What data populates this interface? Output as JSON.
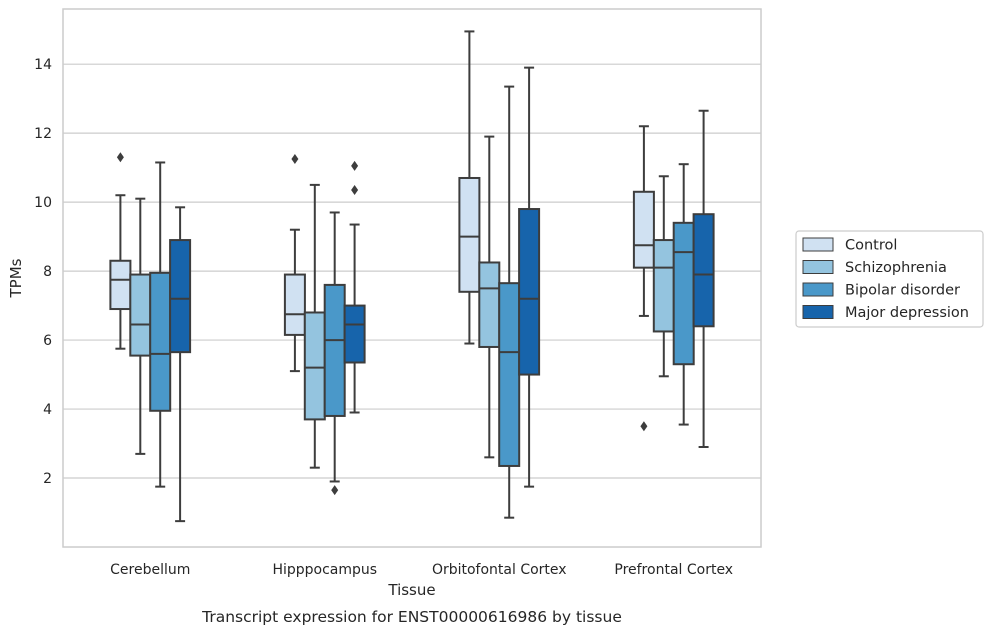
{
  "chart_data": {
    "type": "box",
    "title": "",
    "caption": "Transcript expression for ENST00000616986 by tissue",
    "xlabel": "Tissue",
    "ylabel": "TPMs",
    "ylim": [
      0,
      15.6
    ],
    "yticks": [
      2,
      4,
      6,
      8,
      10,
      12,
      14
    ],
    "grid": true,
    "legend_position": "right",
    "categories": [
      "Cerebellum",
      "Hipppocampus",
      "Orbitofontal Cortex",
      "Prefrontal Cortex"
    ],
    "series": [
      {
        "name": "Control",
        "color": "#d0e1f2",
        "boxes": [
          {
            "whisker_low": 5.75,
            "q1": 6.9,
            "median": 7.75,
            "q3": 8.3,
            "whisker_high": 10.2,
            "outliers": [
              11.3
            ]
          },
          {
            "whisker_low": 5.1,
            "q1": 6.15,
            "median": 6.75,
            "q3": 7.9,
            "whisker_high": 9.2,
            "outliers": [
              11.25
            ]
          },
          {
            "whisker_low": 5.9,
            "q1": 7.4,
            "median": 9.0,
            "q3": 10.7,
            "whisker_high": 14.95,
            "outliers": []
          },
          {
            "whisker_low": 6.7,
            "q1": 8.1,
            "median": 8.75,
            "q3": 10.3,
            "whisker_high": 12.2,
            "outliers": [
              3.5
            ]
          }
        ]
      },
      {
        "name": "Schizophrenia",
        "color": "#94c4df",
        "boxes": [
          {
            "whisker_low": 2.7,
            "q1": 5.55,
            "median": 6.45,
            "q3": 7.9,
            "whisker_high": 10.1,
            "outliers": []
          },
          {
            "whisker_low": 2.3,
            "q1": 3.7,
            "median": 5.2,
            "q3": 6.8,
            "whisker_high": 10.5,
            "outliers": []
          },
          {
            "whisker_low": 2.6,
            "q1": 5.8,
            "median": 7.5,
            "q3": 8.25,
            "whisker_high": 11.9,
            "outliers": []
          },
          {
            "whisker_low": 4.95,
            "q1": 6.25,
            "median": 8.1,
            "q3": 8.9,
            "whisker_high": 10.75,
            "outliers": []
          }
        ]
      },
      {
        "name": "Bipolar disorder",
        "color": "#4a98c9",
        "boxes": [
          {
            "whisker_low": 1.75,
            "q1": 3.95,
            "median": 5.6,
            "q3": 7.95,
            "whisker_high": 11.15,
            "outliers": []
          },
          {
            "whisker_low": 1.9,
            "q1": 3.8,
            "median": 6.0,
            "q3": 7.6,
            "whisker_high": 9.7,
            "outliers": [
              1.65
            ]
          },
          {
            "whisker_low": 0.85,
            "q1": 2.35,
            "median": 5.65,
            "q3": 7.65,
            "whisker_high": 13.35,
            "outliers": []
          },
          {
            "whisker_low": 3.55,
            "q1": 5.3,
            "median": 8.55,
            "q3": 9.4,
            "whisker_high": 11.1,
            "outliers": []
          }
        ]
      },
      {
        "name": "Major depression",
        "color": "#1764ab",
        "boxes": [
          {
            "whisker_low": 0.75,
            "q1": 5.65,
            "median": 7.2,
            "q3": 8.9,
            "whisker_high": 9.85,
            "outliers": []
          },
          {
            "whisker_low": 3.9,
            "q1": 5.35,
            "median": 6.45,
            "q3": 7.0,
            "whisker_high": 9.35,
            "outliers": [
              10.35,
              11.05
            ]
          },
          {
            "whisker_low": 1.75,
            "q1": 5.0,
            "median": 7.2,
            "q3": 9.8,
            "whisker_high": 13.9,
            "outliers": []
          },
          {
            "whisker_low": 2.9,
            "q1": 6.4,
            "median": 7.9,
            "q3": 9.65,
            "whisker_high": 12.65,
            "outliers": []
          }
        ]
      }
    ]
  }
}
